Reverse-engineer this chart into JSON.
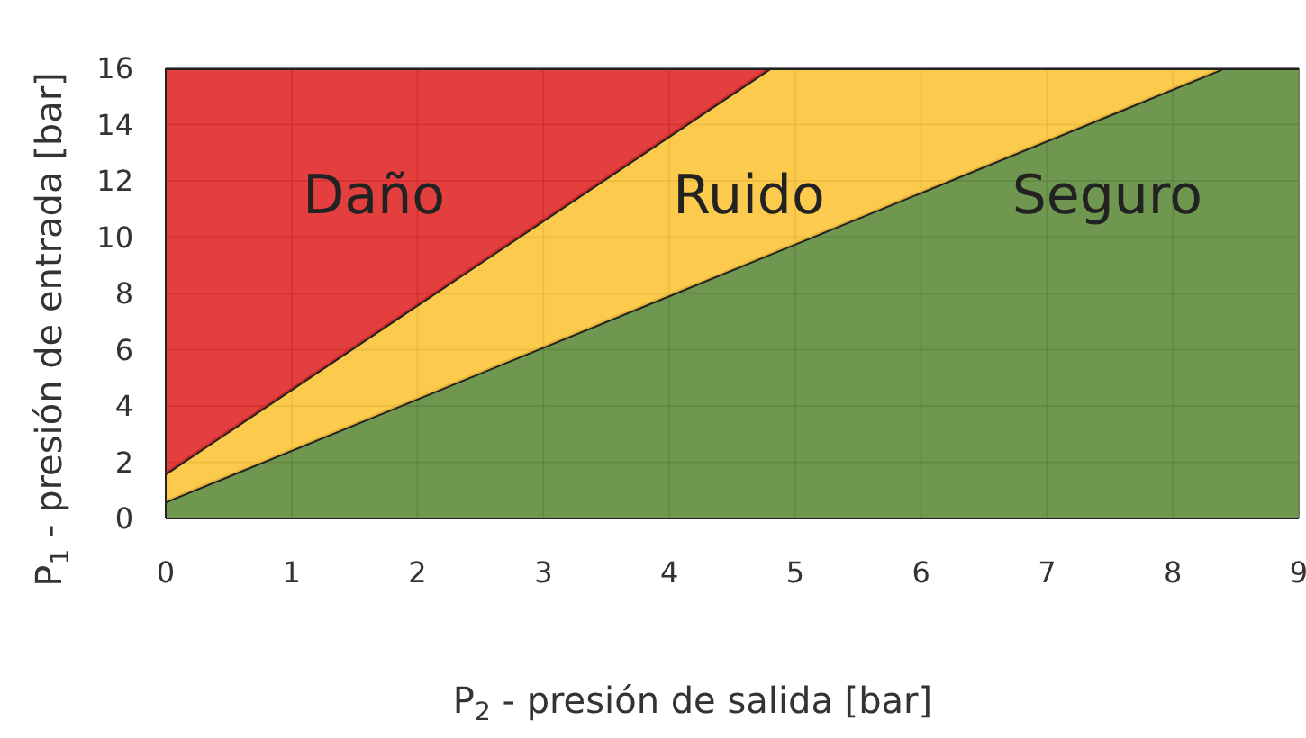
{
  "chart_data": {
    "type": "area",
    "stacked": true,
    "xlabel": "P$_{2}$ - presión de salida [bar]",
    "ylabel": "P$_{1}$ - presión de entrada [bar]",
    "x": [
      0,
      4.8,
      8.4,
      9
    ],
    "series": [
      {
        "name": "Seguro",
        "color": "#5f8c3c",
        "values": [
          0.6,
          9.4,
          16,
          16
        ]
      },
      {
        "name": "Ruido",
        "color": "#fcc43a",
        "values": [
          1.0,
          6.6,
          0,
          0
        ]
      },
      {
        "name": "Daño",
        "color": "#e12a2a",
        "values": [
          14.4,
          0,
          0,
          0
        ]
      }
    ],
    "xlim": [
      0,
      9
    ],
    "xticks": [
      0,
      1,
      2,
      3,
      4,
      5,
      6,
      7,
      8,
      9
    ],
    "ylim": [
      0,
      16
    ],
    "yticks": [
      0,
      2,
      4,
      6,
      8,
      10,
      12,
      14,
      16
    ],
    "grid": true
  }
}
